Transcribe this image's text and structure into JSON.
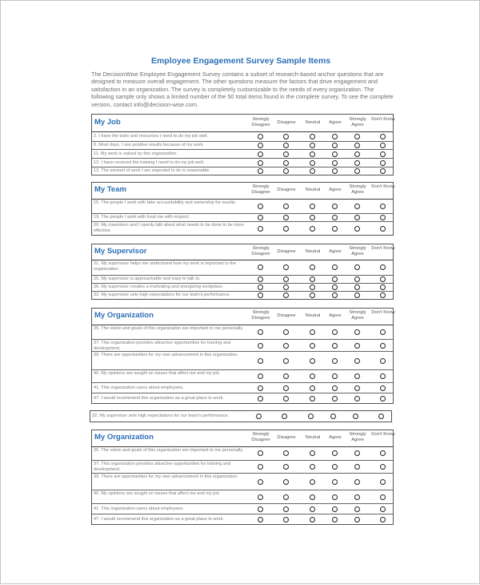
{
  "title": "Employee Engagement Survey Sample Items",
  "intro": "The DecisionWise Employee Engagement Survey contains a subset of research-based anchor questions that are designed to measure overall engagement. The other questions measure the factors that drive engagement and satisfaction in an organization. The survey is completely customizable to the needs of every organization. The following sample only shows a limited number of the 50 total items found in the complete survey. To see the complete version, contact info@decision-wise.com.",
  "scale": [
    "Strongly Disagree",
    "Disagree",
    "Neutral",
    "Agree",
    "Strongly Agree",
    "Don't Know"
  ],
  "colors": {
    "accent": "#2b6fb6",
    "border": "#5a5250",
    "text": "#7a7a7a"
  },
  "sections": [
    {
      "title": "My Job",
      "items": [
        "2. I have the tools and resources I need to do my job well.",
        "8. Most days, I see positive results because of my work.",
        "11. My work is valued by this organization.",
        "12. I have received the training I need to do my job well.",
        "13. The amount of work I am expected to do is reasonable."
      ]
    },
    {
      "title": "My Team",
      "items": [
        "15. The people I work with take accountability and ownership for results.",
        "19. The people I work with treat me with respect.",
        "20. My coworkers and I openly talk about what needs to be done to be more effective."
      ]
    },
    {
      "title": "My Supervisor",
      "items": [
        "21. My supervisor helps me understand how my work is important to the organization.",
        "25. My supervisor is approachable and easy to talk to.",
        "26. My supervisor creates a motivating and energizing workplace.",
        "32. My supervisor sets high expectations for our team's performance."
      ]
    },
    {
      "title": "My Organization",
      "items": [
        "35. The vision and goals of this organization are important to me personally.",
        "37. This organization provides attractive opportunities for training and development.",
        "39. There are opportunities for my own advancement in this organization.",
        "40. My opinions are sought on issues that affect me and my job.",
        "41. This organization cares about employees.",
        "47. I would recommend this organization as a great place to work."
      ]
    },
    {
      "title": "",
      "items": [
        "32. My supervisor sets high expectations for our team's performance."
      ]
    },
    {
      "title": "My Organization",
      "items": [
        "35. The vision and goals of this organization are important to me personally.",
        "37. This organization provides attractive opportunities for training and development.",
        "39. There are opportunities for my own advancement in this organization.",
        "40. My opinions are sought on issues that affect me and my job.",
        "41. This organization cares about employees.",
        "47. I would recommend this organization as a great place to work."
      ]
    }
  ]
}
